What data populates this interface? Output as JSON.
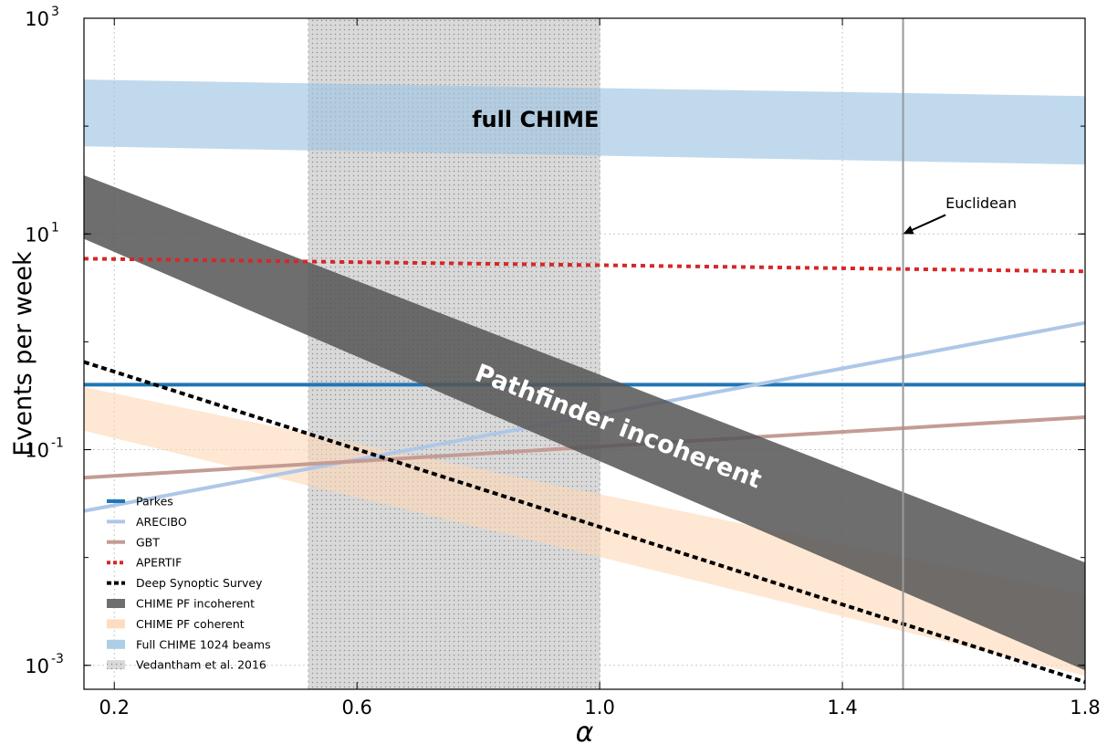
{
  "chart_data": {
    "type": "line",
    "xlabel": "α",
    "ylabel": "Events per week",
    "xlim": [
      0.15,
      1.8
    ],
    "ylim": [
      0.0006,
      1000
    ],
    "y_scale": "log",
    "grid": true,
    "legend_position": "lower-left",
    "x_ticks": [
      {
        "value": 0.2,
        "label": "0.2"
      },
      {
        "value": 0.6,
        "label": "0.6"
      },
      {
        "value": 1.0,
        "label": "1.0"
      },
      {
        "value": 1.4,
        "label": "1.4"
      },
      {
        "value": 1.8,
        "label": "1.8"
      }
    ],
    "y_ticks": [
      {
        "value": 0.001,
        "base": "10",
        "exp": "-3"
      },
      {
        "value": 0.1,
        "base": "10",
        "exp": "-1"
      },
      {
        "value": 10,
        "base": "10",
        "exp": "1"
      },
      {
        "value": 1000,
        "base": "10",
        "exp": "3"
      }
    ],
    "series": [
      {
        "name": "Parkes",
        "kind": "line",
        "color": "#1f77b4",
        "style": "solid",
        "x": [
          0.15,
          1.8
        ],
        "y": [
          0.4,
          0.4
        ]
      },
      {
        "name": "ARECIBO",
        "kind": "line",
        "color": "#aec7e8",
        "style": "solid",
        "x": [
          0.15,
          1.8
        ],
        "y": [
          0.027,
          1.5
        ]
      },
      {
        "name": "GBT",
        "kind": "line",
        "color": "#c49c94",
        "style": "solid",
        "x": [
          0.15,
          1.8
        ],
        "y": [
          0.055,
          0.2
        ]
      },
      {
        "name": "APERTIF",
        "kind": "line",
        "color": "#d62728",
        "style": "dotted",
        "x": [
          0.15,
          1.8
        ],
        "y": [
          5.9,
          4.5
        ]
      },
      {
        "name": "Deep Synoptic Survey",
        "kind": "line",
        "color": "#000000",
        "style": "dashed",
        "x": [
          0.15,
          1.8
        ],
        "y": [
          0.65,
          0.0007
        ]
      },
      {
        "name": "CHIME PF incoherent",
        "kind": "band",
        "color": "#555555",
        "x": [
          0.15,
          1.8
        ],
        "lower": [
          9.0,
          0.0009
        ],
        "upper": [
          35.0,
          0.009
        ]
      },
      {
        "name": "CHIME PF coherent",
        "kind": "band",
        "color": "#fdd7b5",
        "x": [
          0.15,
          1.8
        ],
        "lower": [
          0.15,
          0.0008
        ],
        "upper": [
          0.38,
          0.0045
        ]
      },
      {
        "name": "Full CHIME 1024 beams",
        "kind": "band",
        "color": "#9ec5e3",
        "x": [
          0.15,
          1.8
        ],
        "lower": [
          65.0,
          44.0
        ],
        "upper": [
          270.0,
          190.0
        ]
      },
      {
        "name": "Vedantham et al. 2016",
        "kind": "region",
        "color": "#cccccc",
        "x_range": [
          0.52,
          1.0
        ]
      }
    ],
    "annotations": [
      {
        "id": "full-chime",
        "text": "full CHIME",
        "x": 1.0,
        "y": 120
      },
      {
        "id": "pathfinder",
        "text": "Pathfinder incoherent",
        "x": 1.03,
        "y": 0.16
      },
      {
        "id": "euclidean",
        "text": "Euclidean",
        "x": 1.6,
        "y": 16
      }
    ],
    "vline": {
      "x": 1.5,
      "color": "#999999"
    },
    "arrow": {
      "from_x": 1.57,
      "from_y": 15,
      "to_x": 1.5,
      "to_y": 10
    }
  }
}
